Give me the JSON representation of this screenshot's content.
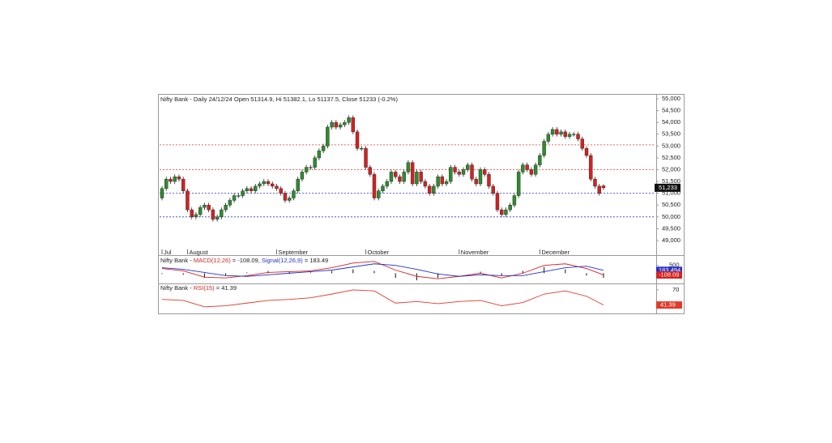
{
  "chart_data": [
    {
      "type": "candlestick",
      "title": "Nifty Bank - Daily 24/12/24 Open 51314.9, Hi 51382.1, Lo 51137.5, Close 51233 (-0.2%)",
      "categories": [
        "Jul",
        null,
        null,
        null,
        null,
        null,
        "August",
        null,
        null,
        null,
        null,
        null,
        null,
        null,
        null,
        null,
        null,
        null,
        null,
        null,
        null,
        null,
        null,
        null,
        null,
        null,
        null,
        "September",
        null,
        null,
        null,
        null,
        null,
        null,
        null,
        null,
        null,
        null,
        null,
        null,
        null,
        null,
        null,
        null,
        null,
        null,
        null,
        null,
        "October",
        null,
        null,
        null,
        null,
        null,
        null,
        null,
        null,
        null,
        null,
        null,
        null,
        null,
        null,
        null,
        null,
        null,
        null,
        null,
        null,
        null,
        "November",
        null,
        null,
        null,
        null,
        null,
        null,
        null,
        null,
        null,
        null,
        null,
        null,
        null,
        null,
        null,
        null,
        null,
        null,
        "December",
        null,
        null,
        null,
        null,
        null,
        null,
        null,
        null,
        null,
        null,
        null,
        null,
        null,
        null,
        null
      ],
      "open": [
        50800,
        51200,
        51600,
        51500,
        51700,
        51600,
        51100,
        50300,
        50000,
        50100,
        50400,
        50500,
        50300,
        49900,
        50000,
        50300,
        50500,
        50700,
        50900,
        50900,
        51100,
        51200,
        51100,
        51300,
        51400,
        51500,
        51400,
        51300,
        51200,
        51000,
        50700,
        50800,
        51100,
        51600,
        51900,
        52100,
        52100,
        52500,
        52800,
        53000,
        53800,
        54000,
        53800,
        53900,
        54000,
        54200,
        53600,
        52900,
        52900,
        52100,
        51800,
        50800,
        51100,
        51300,
        51500,
        51900,
        51700,
        51500,
        51900,
        52300,
        51400,
        51900,
        51500,
        51300,
        51000,
        51300,
        51700,
        51400,
        51500,
        52100,
        51900,
        51800,
        52000,
        52200,
        51600,
        51400,
        52000,
        51800,
        51300,
        51000,
        50300,
        50100,
        50300,
        50500,
        50900,
        51900,
        52200,
        52000,
        51800,
        52200,
        52600,
        53200,
        53500,
        53700,
        53500,
        53600,
        53400,
        53500,
        53500,
        53300,
        52900,
        52600,
        51600,
        51300,
        51314.9
      ],
      "high": [
        51300,
        51700,
        51700,
        51800,
        51800,
        51700,
        51200,
        50400,
        50200,
        50500,
        50600,
        50600,
        50400,
        50100,
        50400,
        50600,
        50800,
        51000,
        51000,
        51200,
        51300,
        51300,
        51400,
        51500,
        51600,
        51600,
        51500,
        51400,
        51300,
        51100,
        50900,
        51200,
        51700,
        52000,
        52200,
        52200,
        52600,
        52900,
        53100,
        53900,
        54100,
        54100,
        54000,
        54100,
        54300,
        54300,
        53700,
        53000,
        53000,
        52200,
        51900,
        51200,
        51400,
        51600,
        52000,
        52000,
        51800,
        52000,
        52400,
        52400,
        52000,
        52000,
        51600,
        51400,
        51400,
        51800,
        51800,
        51600,
        52200,
        52200,
        52000,
        52100,
        52300,
        52300,
        51700,
        52100,
        52100,
        51900,
        51400,
        51100,
        50400,
        50400,
        50600,
        51000,
        52000,
        52300,
        52300,
        52100,
        52300,
        52700,
        53300,
        53600,
        53800,
        53800,
        53700,
        53700,
        53600,
        53600,
        53600,
        53400,
        53000,
        52700,
        51700,
        51400,
        51382.1
      ],
      "low": [
        50700,
        51100,
        51400,
        51400,
        51500,
        51000,
        50200,
        49900,
        49900,
        50000,
        50300,
        50200,
        49800,
        49800,
        49900,
        50200,
        50400,
        50600,
        50800,
        50800,
        51000,
        51000,
        51000,
        51200,
        51300,
        51300,
        51200,
        51100,
        50900,
        50600,
        50600,
        50700,
        51000,
        51500,
        51800,
        52000,
        52000,
        52400,
        52700,
        52900,
        53700,
        53700,
        53700,
        53800,
        53900,
        53500,
        52800,
        52800,
        52000,
        51700,
        50700,
        50700,
        51000,
        51200,
        51400,
        51600,
        51400,
        51400,
        51800,
        51300,
        51300,
        51400,
        51200,
        50900,
        50900,
        51200,
        51300,
        51300,
        51400,
        51800,
        51700,
        51700,
        51900,
        51500,
        51300,
        51300,
        51700,
        51200,
        50900,
        50200,
        50000,
        50000,
        50200,
        50400,
        50800,
        51800,
        51900,
        51700,
        51700,
        52100,
        52500,
        53100,
        53400,
        53400,
        53400,
        53300,
        53300,
        53400,
        53200,
        52800,
        52500,
        51500,
        51200,
        50900,
        51137.5
      ],
      "close": [
        51200,
        51600,
        51500,
        51700,
        51600,
        51100,
        50300,
        50000,
        50100,
        50400,
        50500,
        50300,
        49900,
        50000,
        50300,
        50500,
        50700,
        50900,
        50900,
        51100,
        51200,
        51100,
        51300,
        51400,
        51500,
        51400,
        51300,
        51200,
        51000,
        50700,
        50800,
        51100,
        51600,
        51900,
        52100,
        52100,
        52500,
        52800,
        53000,
        53800,
        54000,
        53800,
        53900,
        54000,
        54200,
        53600,
        52900,
        52900,
        52100,
        51800,
        50800,
        51100,
        51300,
        51500,
        51900,
        51700,
        51500,
        51900,
        52300,
        51400,
        51900,
        51500,
        51300,
        51000,
        51300,
        51700,
        51400,
        51500,
        52100,
        51900,
        51800,
        52000,
        52200,
        51600,
        51400,
        52000,
        51800,
        51300,
        51000,
        50300,
        50100,
        50300,
        50500,
        50900,
        51900,
        52200,
        52000,
        51800,
        52200,
        52600,
        53200,
        53500,
        53700,
        53500,
        53600,
        53400,
        53500,
        53500,
        53300,
        52900,
        52600,
        51600,
        51300,
        51000,
        51233
      ],
      "up_color": "#2e8b2e",
      "down_color": "#d62020",
      "ylim": [
        48451,
        55171
      ],
      "yticks": [
        {
          "value": 55000,
          "label": "55,000"
        },
        {
          "value": 54500,
          "label": "54,500"
        },
        {
          "value": 54000,
          "label": "54,000"
        },
        {
          "value": 53500,
          "label": "53,500"
        },
        {
          "value": 53000,
          "label": "53,000"
        },
        {
          "value": 52500,
          "label": "52,500"
        },
        {
          "value": 52000,
          "label": "52,000"
        },
        {
          "value": 51500,
          "label": "51,500"
        },
        {
          "value": 51000,
          "label": "51,000"
        },
        {
          "value": 50500,
          "label": "50,500"
        },
        {
          "value": 50000,
          "label": "50,000"
        },
        {
          "value": 49500,
          "label": "49,500"
        },
        {
          "value": 49000,
          "label": "49,000"
        }
      ],
      "levels": [
        53050,
        52000,
        51000,
        50000
      ],
      "level_colors": [
        "#e03a2a",
        "#e03a2a",
        "#2a3ad0",
        "#2a3ad0"
      ],
      "last_price": {
        "value": 51233,
        "label": "51,233"
      }
    },
    {
      "type": "macd",
      "title_parts": [
        "Nifty Bank - ",
        "MACD(12,26)",
        " = -108.09, ",
        "Signal(12,26,9)",
        " = 183.49"
      ],
      "title_colors": [
        "#222222",
        "#d62020",
        "#222222",
        "#2233cc",
        "#222222"
      ],
      "x": [
        0,
        5,
        10,
        15,
        20,
        25,
        30,
        35,
        40,
        45,
        50,
        55,
        60,
        65,
        70,
        75,
        80,
        85,
        90,
        95,
        100,
        104
      ],
      "macd": [
        300,
        150,
        -250,
        -300,
        -150,
        50,
        100,
        150,
        350,
        650,
        750,
        200,
        -200,
        -350,
        -200,
        0,
        -300,
        0,
        500,
        600,
        300,
        -108.09
      ],
      "signal": [
        350,
        250,
        50,
        -150,
        -200,
        -100,
        0,
        100,
        200,
        400,
        600,
        500,
        250,
        -50,
        -200,
        -100,
        -150,
        -150,
        100,
        350,
        450,
        183.49
      ],
      "histogram": [
        -50,
        -100,
        -300,
        -150,
        50,
        150,
        100,
        50,
        150,
        250,
        150,
        -300,
        -450,
        -300,
        0,
        100,
        -150,
        150,
        400,
        250,
        -150,
        -291.58
      ],
      "macd_color": "#d62020",
      "signal_color": "#2233cc",
      "ylim": [
        -600,
        1000
      ],
      "yticks": [
        500
      ],
      "signal_last": 183.494,
      "macd_last": -108.09
    },
    {
      "type": "line",
      "title_parts": [
        "Nifty Bank - ",
        "RSI(15)",
        " = 41.39"
      ],
      "title_colors": [
        "#222222",
        "#d62020",
        "#222222"
      ],
      "x": [
        0,
        5,
        10,
        15,
        20,
        25,
        30,
        35,
        40,
        45,
        50,
        55,
        60,
        65,
        70,
        75,
        80,
        85,
        90,
        95,
        100,
        104
      ],
      "values": [
        52,
        50,
        38,
        40,
        45,
        50,
        52,
        55,
        62,
        70,
        68,
        45,
        48,
        44,
        48,
        50,
        40,
        46,
        62,
        68,
        58,
        41.39
      ],
      "color": "#e03a2a",
      "ylim": [
        24,
        79
      ],
      "yticks": [
        70
      ],
      "last": 41.39
    }
  ]
}
